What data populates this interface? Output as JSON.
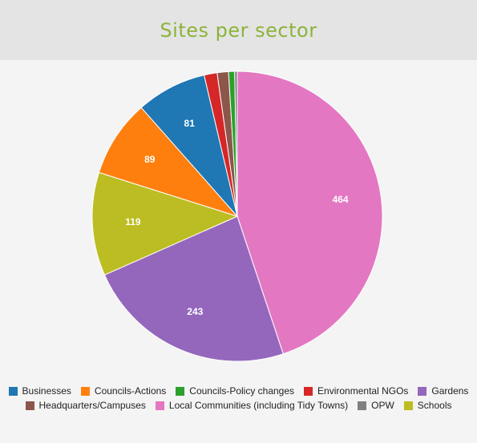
{
  "header": {
    "title": "Sites per sector"
  },
  "chart_data": {
    "type": "pie",
    "title": "Sites per sector",
    "slices": [
      {
        "label": "Local Communities (including Tidy Towns)",
        "value": 464,
        "color": "#e377c2",
        "show_label": true
      },
      {
        "label": "Gardens",
        "value": 243,
        "color": "#9467bd",
        "show_label": true
      },
      {
        "label": "Schools",
        "value": 119,
        "color": "#bcbd22",
        "show_label": true
      },
      {
        "label": "Councils-Actions",
        "value": 89,
        "color": "#ff7f0e",
        "show_label": true
      },
      {
        "label": "Businesses",
        "value": 81,
        "color": "#1f77b4",
        "show_label": true
      },
      {
        "label": "Environmental NGOs",
        "value": 15,
        "color": "#d62728",
        "show_label": false
      },
      {
        "label": "Headquarters/Campuses",
        "value": 13,
        "color": "#8c564b",
        "show_label": false
      },
      {
        "label": "Councils-Policy changes",
        "value": 7,
        "color": "#2ca02c",
        "show_label": false
      },
      {
        "label": "OPW",
        "value": 3,
        "color": "#7f7f7f",
        "show_label": false
      }
    ],
    "legend_placement": "bottom"
  },
  "legend": {
    "rows": [
      [
        {
          "label": "Businesses",
          "color": "#1f77b4"
        },
        {
          "label": "Councils-Actions",
          "color": "#ff7f0e"
        },
        {
          "label": "Councils-Policy changes",
          "color": "#2ca02c"
        },
        {
          "label": "Environmental NGOs",
          "color": "#d62728"
        },
        {
          "label": "Gardens",
          "color": "#9467bd"
        }
      ],
      [
        {
          "label": "Headquarters/Campuses",
          "color": "#8c564b"
        },
        {
          "label": "Local Communities (including Tidy Towns)",
          "color": "#e377c2"
        },
        {
          "label": "OPW",
          "color": "#7f7f7f"
        },
        {
          "label": "Schools",
          "color": "#bcbd22"
        }
      ]
    ]
  }
}
